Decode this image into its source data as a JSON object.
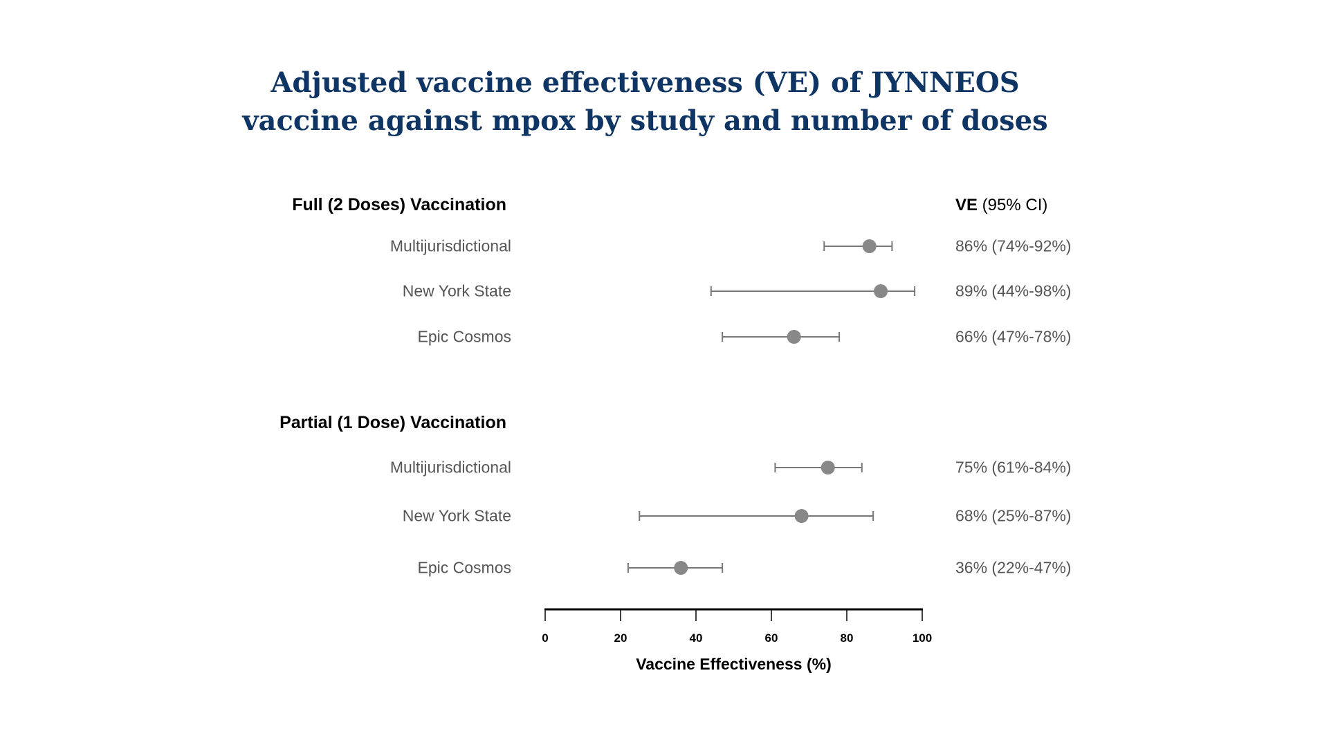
{
  "title_lines": [
    "Adjusted vaccine effectiveness (VE) of JYNNEOS",
    "vaccine against mpox by study and number of doses"
  ],
  "ve_header": {
    "bold": "VE",
    "rest": " (95% CI)"
  },
  "chart_data": {
    "type": "forest",
    "xlabel": "Vaccine Effectiveness (%)",
    "xlim": [
      0,
      100
    ],
    "xticks": [
      0,
      20,
      40,
      60,
      80,
      100
    ],
    "marker_color": "#888888",
    "title_color": "#0e3563",
    "groups": [
      {
        "name": "Full (2 Doses) Vaccination",
        "rows": [
          {
            "study": "Multijurisdictional",
            "ve": 86,
            "lo": 74,
            "hi": 92,
            "label": "86% (74%-92%)"
          },
          {
            "study": "New York State",
            "ve": 89,
            "lo": 44,
            "hi": 98,
            "label": "89% (44%-98%)"
          },
          {
            "study": "Epic Cosmos",
            "ve": 66,
            "lo": 47,
            "hi": 78,
            "label": "66% (47%-78%)"
          }
        ]
      },
      {
        "name": "Partial (1 Dose) Vaccination",
        "rows": [
          {
            "study": "Multijurisdictional",
            "ve": 75,
            "lo": 61,
            "hi": 84,
            "label": "75% (61%-84%)"
          },
          {
            "study": "New York State",
            "ve": 68,
            "lo": 25,
            "hi": 87,
            "label": "68% (25%-87%)"
          },
          {
            "study": "Epic Cosmos",
            "ve": 36,
            "lo": 22,
            "hi": 47,
            "label": "36% (22%-47%)"
          }
        ]
      }
    ]
  }
}
